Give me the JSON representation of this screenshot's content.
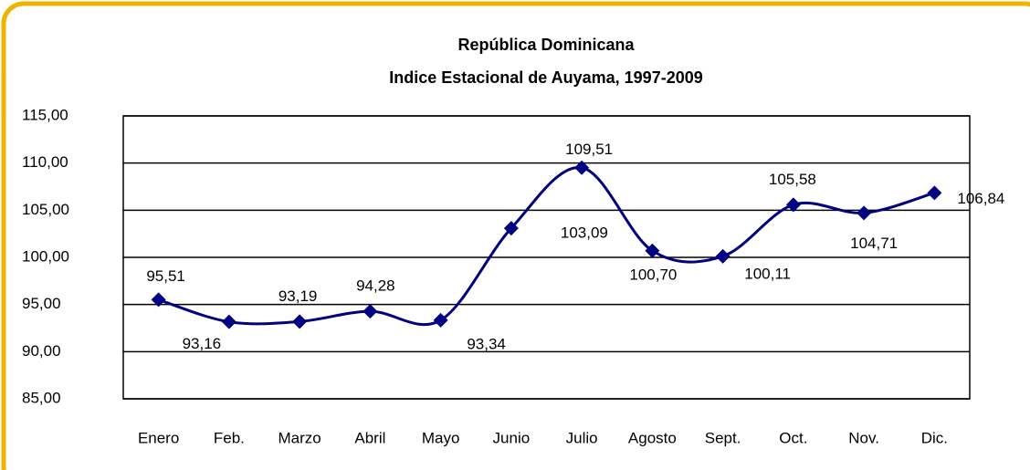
{
  "chart_data": {
    "type": "line",
    "title": [
      "República   Dominicana",
      "Indice Estacional  de  Auyama, 1997-2009"
    ],
    "categories": [
      "Enero",
      "Feb.",
      "Marzo",
      "Abril",
      "Mayo",
      "Junio",
      "Julio",
      "Agosto",
      "Sept.",
      "Oct.",
      "Nov.",
      "Dic."
    ],
    "values": [
      95.51,
      93.16,
      93.19,
      94.28,
      93.34,
      103.09,
      109.51,
      100.7,
      100.11,
      105.58,
      104.71,
      106.84
    ],
    "value_labels": [
      "95,51",
      "93,16",
      "93,19",
      "94,28",
      "93,34",
      "103,09",
      "109,51",
      "100,70",
      "100,11",
      "105,58",
      "104,71",
      "106,84"
    ],
    "color": "#000080",
    "ylim": [
      85,
      115
    ],
    "yticks": [
      {
        "value": 85,
        "label": "85,00"
      },
      {
        "value": 90,
        "label": "90,00"
      },
      {
        "value": 95,
        "label": "95,00"
      },
      {
        "value": 100,
        "label": "100,00"
      },
      {
        "value": 105,
        "label": "105,00"
      },
      {
        "value": 110,
        "label": "110,00"
      },
      {
        "value": 115,
        "label": "115,00"
      }
    ],
    "grid": true,
    "smooth": true
  }
}
